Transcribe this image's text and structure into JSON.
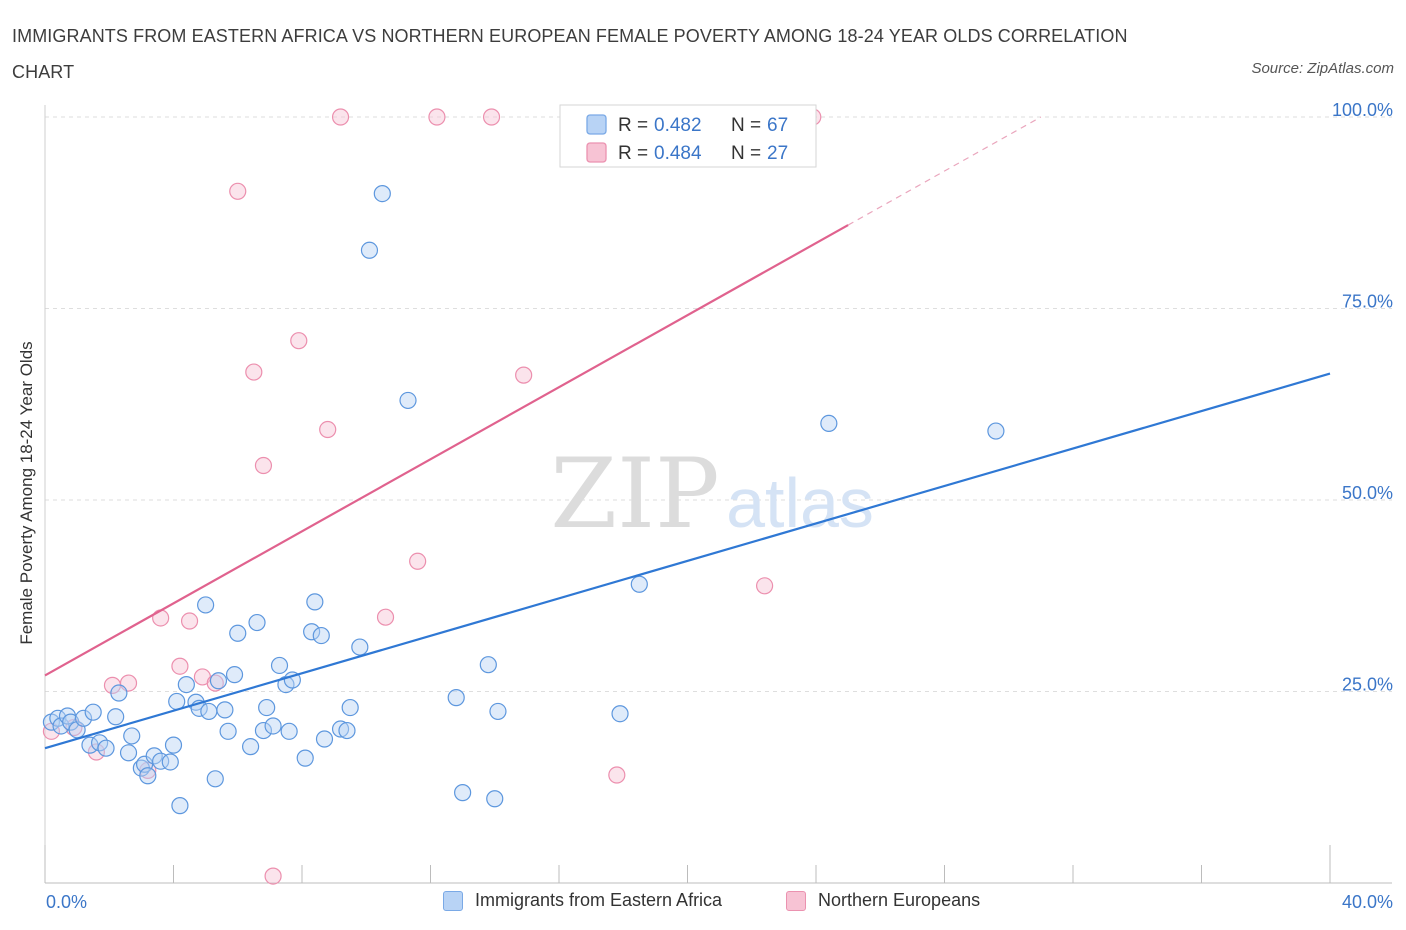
{
  "title": "IMMIGRANTS FROM EASTERN AFRICA VS NORTHERN EUROPEAN FEMALE POVERTY AMONG 18-24 YEAR OLDS CORRELATION CHART",
  "source": "Source: ZipAtlas.com",
  "watermark": {
    "zip": "ZIP",
    "atlas": "atlas"
  },
  "colors": {
    "blue": "#2f78d4",
    "blue_fill": "#b8d3f5",
    "pink": "#e0628e",
    "pink_fill": "#f7c3d4",
    "axis_text": "#3b76c8"
  },
  "chart_data": {
    "type": "scatter",
    "title": "IMMIGRANTS FROM EASTERN AFRICA VS NORTHERN EUROPEAN FEMALE POVERTY AMONG 18-24 YEAR OLDS CORRELATION CHART",
    "xlabel": "",
    "ylabel": "Female Poverty Among 18-24 Year Olds",
    "xlim": [
      0,
      40
    ],
    "ylim": [
      0,
      100
    ],
    "x_tick_labels": [
      "0.0%",
      "40.0%"
    ],
    "y_tick_labels": [
      "25.0%",
      "50.0%",
      "75.0%",
      "100.0%"
    ],
    "y_ticks": [
      25,
      50,
      75,
      100
    ],
    "grid": true,
    "legend": {
      "placement": "top-center",
      "entries": [
        {
          "r_label": "R =",
          "r_value": "0.482",
          "n_label": "N =",
          "n_value": "67"
        },
        {
          "r_label": "R =",
          "r_value": "0.484",
          "n_label": "N =",
          "n_value": "27"
        }
      ]
    },
    "series": [
      {
        "name": "Immigrants from Eastern Africa",
        "color": "#2f78d4",
        "trend": {
          "x": [
            0,
            40
          ],
          "y": [
            17.6,
            66.5
          ],
          "dashed_after": null
        },
        "points": [
          [
            0.2,
            21
          ],
          [
            0.4,
            21.5
          ],
          [
            0.5,
            20.5
          ],
          [
            0.7,
            21.8
          ],
          [
            0.8,
            21
          ],
          [
            1,
            20
          ],
          [
            1.2,
            21.5
          ],
          [
            1.4,
            18
          ],
          [
            1.5,
            22.3
          ],
          [
            1.7,
            18.3
          ],
          [
            1.9,
            17.6
          ],
          [
            2.2,
            21.7
          ],
          [
            2.3,
            24.8
          ],
          [
            2.6,
            17
          ],
          [
            2.7,
            19.2
          ],
          [
            3,
            15
          ],
          [
            3.1,
            15.5
          ],
          [
            3.2,
            14
          ],
          [
            3.4,
            16.6
          ],
          [
            3.6,
            15.9
          ],
          [
            3.9,
            15.8
          ],
          [
            4,
            18
          ],
          [
            4.2,
            10.1
          ],
          [
            4.1,
            23.7
          ],
          [
            4.4,
            25.9
          ],
          [
            4.7,
            23.6
          ],
          [
            4.8,
            22.8
          ],
          [
            5,
            36.3
          ],
          [
            5.1,
            22.4
          ],
          [
            5.3,
            13.6
          ],
          [
            5.4,
            26.4
          ],
          [
            5.6,
            22.6
          ],
          [
            5.7,
            19.8
          ],
          [
            5.9,
            27.2
          ],
          [
            6,
            32.6
          ],
          [
            6.4,
            17.8
          ],
          [
            6.6,
            34
          ],
          [
            6.8,
            19.9
          ],
          [
            6.9,
            22.9
          ],
          [
            7.1,
            20.5
          ],
          [
            7.3,
            28.4
          ],
          [
            7.5,
            25.9
          ],
          [
            7.6,
            19.8
          ],
          [
            7.7,
            26.5
          ],
          [
            8.1,
            16.3
          ],
          [
            8.3,
            32.8
          ],
          [
            8.4,
            36.7
          ],
          [
            8.6,
            32.3
          ],
          [
            8.7,
            18.8
          ],
          [
            9.2,
            20.1
          ],
          [
            9.4,
            19.9
          ],
          [
            9.5,
            22.9
          ],
          [
            9.8,
            30.8
          ],
          [
            10.1,
            82.6
          ],
          [
            10.5,
            90
          ],
          [
            11.3,
            63
          ],
          [
            12.8,
            24.2
          ],
          [
            13,
            11.8
          ],
          [
            13.8,
            28.5
          ],
          [
            14,
            11
          ],
          [
            14.1,
            22.4
          ],
          [
            17.9,
            22.1
          ],
          [
            18.5,
            39
          ],
          [
            24.4,
            60
          ],
          [
            29.6,
            59
          ]
        ]
      },
      {
        "name": "Northern Europeans",
        "color": "#e0628e",
        "trend": {
          "x": [
            0,
            31
          ],
          "y": [
            27.1,
            100
          ],
          "solid_until_x": 25
        },
        "points": [
          [
            0.2,
            19.8
          ],
          [
            0.9,
            20.3
          ],
          [
            1.6,
            17.1
          ],
          [
            2.1,
            25.8
          ],
          [
            2.6,
            26.1
          ],
          [
            3.2,
            14.7
          ],
          [
            3.6,
            34.6
          ],
          [
            4.2,
            28.3
          ],
          [
            4.5,
            34.2
          ],
          [
            4.9,
            26.9
          ],
          [
            5.3,
            26.1
          ],
          [
            6,
            90.3
          ],
          [
            6.5,
            66.7
          ],
          [
            6.8,
            54.5
          ],
          [
            7.1,
            0.9
          ],
          [
            7.9,
            70.8
          ],
          [
            8.8,
            59.2
          ],
          [
            9.2,
            100
          ],
          [
            10.6,
            34.7
          ],
          [
            11.6,
            42
          ],
          [
            12.2,
            100
          ],
          [
            13.9,
            100
          ],
          [
            14.9,
            66.3
          ],
          [
            17.8,
            14.1
          ],
          [
            22.4,
            38.8
          ],
          [
            23.9,
            100
          ]
        ]
      }
    ]
  }
}
